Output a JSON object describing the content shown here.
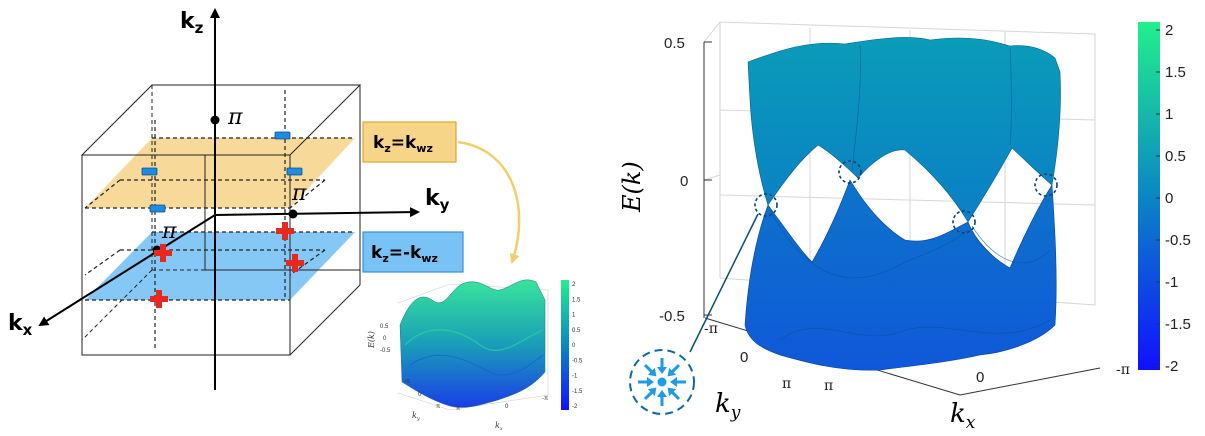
{
  "left_panel": {
    "axes": {
      "kz": "k",
      "kz_sub": "z",
      "ky": "k",
      "ky_sub": "y",
      "kx": "k",
      "kx_sub": "x"
    },
    "pi_labels": [
      "π",
      "π",
      "π"
    ],
    "plane_top_label": {
      "main": "k",
      "sub": "z",
      "eq": "=k",
      "sub2": "wz"
    },
    "plane_bottom_label": {
      "main": "k",
      "sub": "z",
      "eq": "=-k",
      "sub2": "wz"
    }
  },
  "inset": {
    "ylabel": "E(k)",
    "xlabel_left": "k",
    "xlabel_left_sub": "y",
    "xlabel_right": "k",
    "xlabel_right_sub": "x",
    "z_ticks": [
      "0.5",
      "0",
      "-0.5"
    ],
    "colorbar_ticks": [
      "2",
      "1.5",
      "1",
      "0.5",
      "0",
      "-0.5",
      "-1",
      "-1.5",
      "-2"
    ],
    "ky_ticks": [
      "-π",
      "0",
      "π"
    ],
    "kx_ticks": [
      "π",
      "0",
      "-π"
    ]
  },
  "right_panel": {
    "ylabel": "E(k)",
    "xlabel": "k",
    "xlabel_sub": "x",
    "ky_label": "k",
    "ky_label_sub": "y",
    "z_ticks": [
      "0.5",
      "0",
      "-0.5"
    ],
    "ky_ticks": [
      "-π",
      "0",
      "π"
    ],
    "kx_ticks": [
      "π",
      "0",
      "-π"
    ],
    "colorbar_ticks": [
      "2",
      "1.5",
      "1",
      "0.5",
      "0",
      "-0.5",
      "-1",
      "-1.5",
      "-2"
    ],
    "colors": {
      "top": "#00ff88",
      "mid": "#0080c0",
      "bottom": "#0000ff"
    }
  }
}
